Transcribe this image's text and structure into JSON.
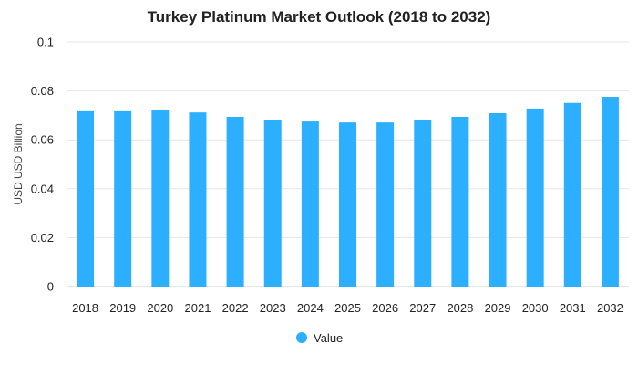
{
  "chart_data": {
    "type": "bar",
    "title": "Turkey Platinum Market Outlook (2018 to 2032)",
    "xlabel": "",
    "ylabel": "USD USD Billion",
    "categories": [
      "2018",
      "2019",
      "2020",
      "2021",
      "2022",
      "2023",
      "2024",
      "2025",
      "2026",
      "2027",
      "2028",
      "2029",
      "2030",
      "2031",
      "2032"
    ],
    "series": [
      {
        "name": "Value",
        "color": "#2caffe",
        "values": [
          0.0717,
          0.0717,
          0.072,
          0.0712,
          0.0694,
          0.0682,
          0.0675,
          0.0671,
          0.0671,
          0.0682,
          0.0694,
          0.0709,
          0.0728,
          0.0751,
          0.0776
        ]
      }
    ],
    "ylim": [
      0,
      0.1
    ],
    "yticks": [
      "0",
      "0.02",
      "0.04",
      "0.06",
      "0.08",
      "0.1"
    ],
    "grid": true,
    "legend_position": "bottom-center"
  }
}
